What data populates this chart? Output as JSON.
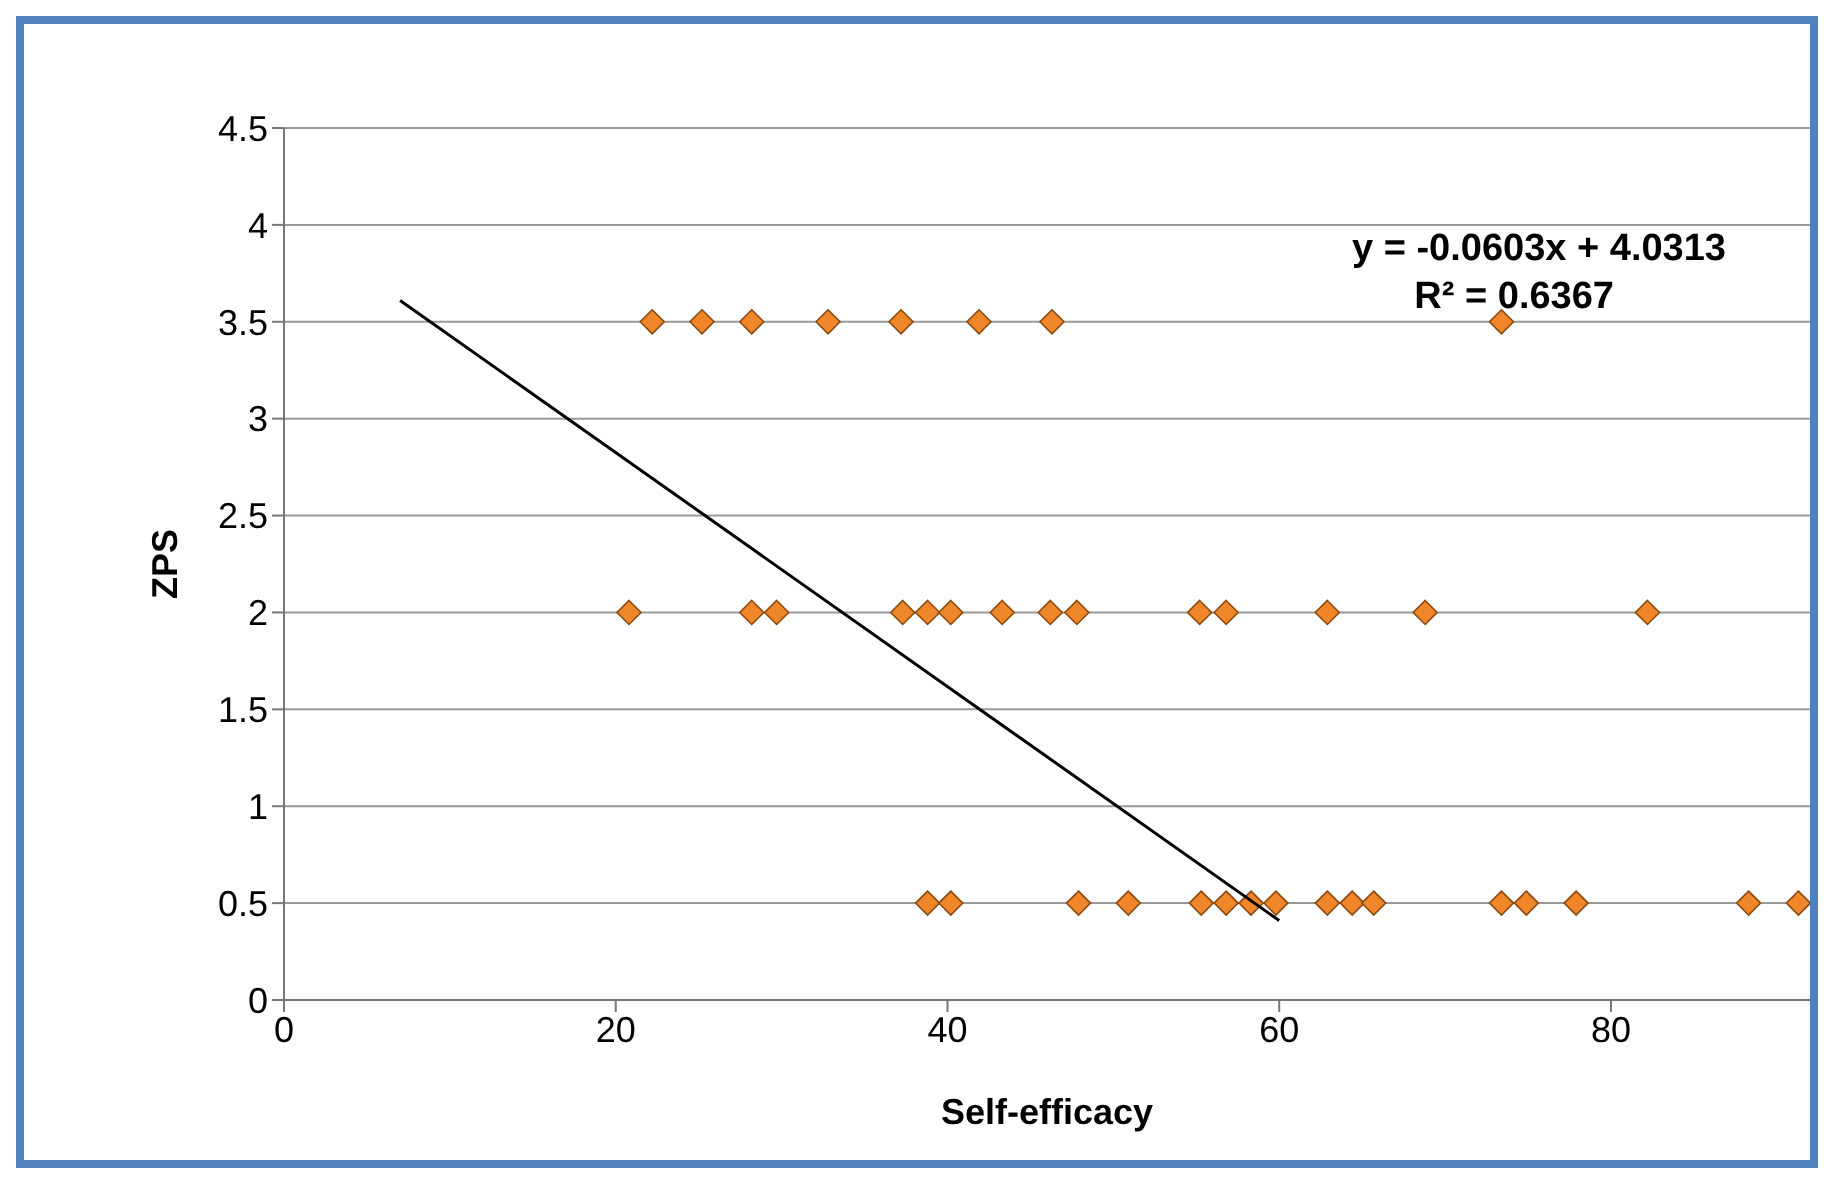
{
  "chart_data": {
    "type": "scatter",
    "xlabel": "Self-efficacy",
    "ylabel": "ZPS",
    "xlim": [
      0,
      92
    ],
    "xticks": [
      0,
      20,
      40,
      60,
      80
    ],
    "ylim": [
      0,
      4.5
    ],
    "yticks": [
      0,
      0.5,
      1,
      1.5,
      2,
      2.5,
      3,
      3.5,
      4,
      4.5
    ],
    "grid": "y",
    "legend": false,
    "marker": "diamond",
    "annotations": [
      "y = -0.0603x + 4.0313",
      "R² = 0.6367"
    ],
    "series": [
      {
        "type": "scatter",
        "color": "#f0862a",
        "x": [
          22.2,
          25.2,
          28.2,
          32.8,
          37.2,
          41.9,
          46.3,
          73.4,
          20.8,
          28.2,
          29.7,
          37.3,
          38.8,
          40.2,
          43.3,
          46.2,
          47.8,
          55.2,
          56.8,
          62.9,
          68.8,
          82.2,
          38.8,
          40.2,
          47.9,
          50.9,
          55.3,
          56.8,
          58.3,
          59.8,
          62.9,
          64.4,
          65.7,
          73.4,
          74.9,
          77.9,
          88.3,
          91.3
        ],
        "values": [
          3.5,
          3.5,
          3.5,
          3.5,
          3.5,
          3.5,
          3.5,
          3.5,
          2,
          2,
          2,
          2,
          2,
          2,
          2,
          2,
          2,
          2,
          2,
          2,
          2,
          2,
          0.5,
          0.5,
          0.5,
          0.5,
          0.5,
          0.5,
          0.5,
          0.5,
          0.5,
          0.5,
          0.5,
          0.5,
          0.5,
          0.5,
          0.5,
          0.5
        ]
      },
      {
        "type": "line",
        "color": "#000000",
        "marker": "none",
        "x": [
          7,
          60
        ],
        "values": [
          3.61,
          0.41
        ]
      }
    ]
  }
}
